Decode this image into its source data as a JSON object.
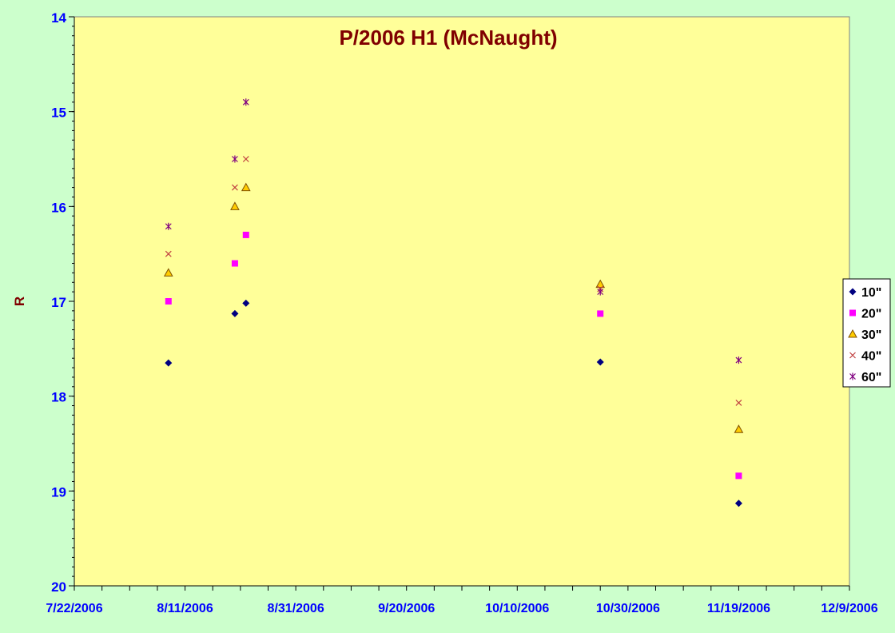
{
  "chart_data": {
    "type": "scatter",
    "title": "P/2006 H1 (McNaught)",
    "xlabel": "",
    "ylabel": "R",
    "x_axis": {
      "min": "2006-07-22",
      "max": "2006-12-09",
      "tick_labels": [
        "7/22/2006",
        "8/11/2006",
        "8/31/2006",
        "9/20/2006",
        "10/10/2006",
        "10/30/2006",
        "11/19/2006",
        "12/9/2006"
      ]
    },
    "y_axis": {
      "min": 14,
      "max": 20,
      "reversed": true,
      "tick_labels": [
        "14",
        "15",
        "16",
        "17",
        "18",
        "19",
        "20"
      ]
    },
    "grid": false,
    "legend_position": "right",
    "plot_background": "#ffff99",
    "chart_background": "#ccffcc",
    "title_color": "#800000",
    "axis_label_color": "#800000",
    "tick_label_color": "#0000ff",
    "series": [
      {
        "name": "10\"",
        "marker": "diamond",
        "color": "#000080",
        "points": [
          [
            "2006-08-08",
            17.65
          ],
          [
            "2006-08-20",
            17.13
          ],
          [
            "2006-08-22",
            17.02
          ],
          [
            "2006-10-25",
            17.64
          ],
          [
            "2006-11-19",
            19.13
          ]
        ]
      },
      {
        "name": "20\"",
        "marker": "square",
        "color": "#ff00ff",
        "points": [
          [
            "2006-08-08",
            17.0
          ],
          [
            "2006-08-20",
            16.6
          ],
          [
            "2006-08-22",
            16.3
          ],
          [
            "2006-10-25",
            17.13
          ],
          [
            "2006-11-19",
            18.84
          ]
        ]
      },
      {
        "name": "30\"",
        "marker": "triangle",
        "color": "#ffcc00",
        "points": [
          [
            "2006-08-08",
            16.7
          ],
          [
            "2006-08-20",
            16.0
          ],
          [
            "2006-08-22",
            15.8
          ],
          [
            "2006-10-25",
            16.82
          ],
          [
            "2006-11-19",
            18.35
          ]
        ]
      },
      {
        "name": "40\"",
        "marker": "x",
        "color": "#c04040",
        "points": [
          [
            "2006-08-08",
            16.5
          ],
          [
            "2006-08-20",
            15.8
          ],
          [
            "2006-08-22",
            15.5
          ],
          [
            "2006-10-25",
            16.87
          ],
          [
            "2006-11-19",
            18.07
          ]
        ]
      },
      {
        "name": "60\"",
        "marker": "star",
        "color": "#800080",
        "points": [
          [
            "2006-08-08",
            16.21
          ],
          [
            "2006-08-20",
            15.5
          ],
          [
            "2006-08-22",
            14.9
          ],
          [
            "2006-10-25",
            16.9
          ],
          [
            "2006-11-19",
            17.62
          ]
        ]
      }
    ]
  }
}
